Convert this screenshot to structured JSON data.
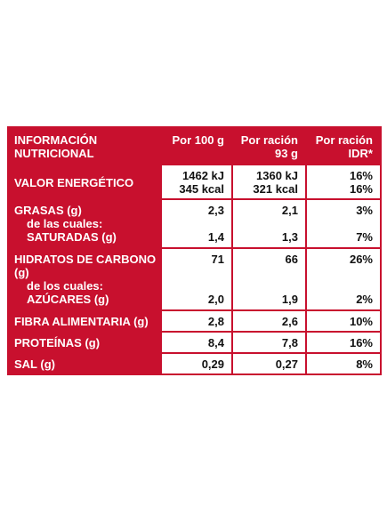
{
  "header": {
    "title_line1": "INFORMACIÓN",
    "title_line2": "NUTRICIONAL",
    "col1": "Por 100 g",
    "col2_line1": "Por ración",
    "col2_line2": "93 g",
    "col3_line1": "Por ración",
    "col3_line2": "IDR*"
  },
  "rows": {
    "energy": {
      "label": "VALOR ENERGÉTICO",
      "per100_kj": "1462 kJ",
      "per100_kcal": "345 kcal",
      "serv_kj": "1360 kJ",
      "serv_kcal": "321 kcal",
      "idr_kj": "16%",
      "idr_kcal": "16%"
    },
    "fat": {
      "label": "GRASAS (g)",
      "sub1": "de las cuales:",
      "sub2": "SATURADAS (g)",
      "per100": "2,3",
      "serv": "2,1",
      "idr": "3%",
      "sat_per100": "1,4",
      "sat_serv": "1,3",
      "sat_idr": "7%"
    },
    "carbs": {
      "label": "HIDRATOS DE CARBONO (g)",
      "sub1": "de los cuales:",
      "sub2": "AZÚCARES (g)",
      "per100": "71",
      "serv": "66",
      "idr": "26%",
      "sug_per100": "2,0",
      "sug_serv": "1,9",
      "sug_idr": "2%"
    },
    "fiber": {
      "label": "FIBRA ALIMENTARIA (g)",
      "per100": "2,8",
      "serv": "2,6",
      "idr": "10%"
    },
    "protein": {
      "label": "PROTEÍNAS (g)",
      "per100": "8,4",
      "serv": "7,8",
      "idr": "16%"
    },
    "salt": {
      "label": "SAL (g)",
      "per100": "0,29",
      "serv": "0,27",
      "idr": "8%"
    }
  },
  "colors": {
    "accent": "#c8102e",
    "text": "#111111"
  }
}
